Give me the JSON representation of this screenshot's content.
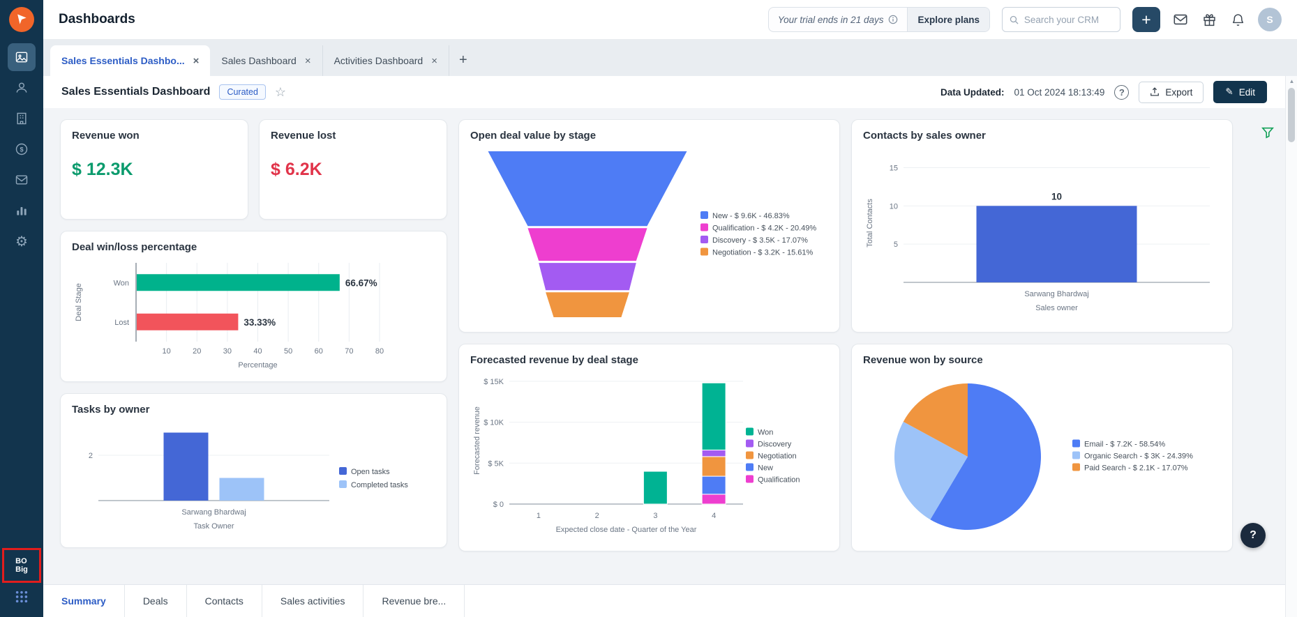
{
  "icons": {
    "close": "×",
    "add_tab": "+",
    "plus": "+",
    "star": "☆",
    "help": "?",
    "edit_pencil": "✎",
    "gear": "⚙",
    "scroll_up": "▲"
  },
  "header": {
    "title": "Dashboards",
    "trial_text": "Your trial ends in 21 days",
    "explore_plans_label": "Explore plans",
    "search_placeholder": "Search your CRM",
    "avatar_initial": "S"
  },
  "dashboard_tabs": [
    {
      "label": "Sales Essentials Dashbo...",
      "active": true
    },
    {
      "label": "Sales Dashboard",
      "active": false
    },
    {
      "label": "Activities Dashboard",
      "active": false
    }
  ],
  "toolbar": {
    "title": "Sales Essentials Dashboard",
    "badge_label": "Curated",
    "data_updated_label": "Data Updated:",
    "data_updated_value": "01 Oct 2024 18:13:49",
    "export_label": "Export",
    "edit_label": "Edit"
  },
  "sidebar": {
    "badge_line1": "BO",
    "badge_line2": "Big"
  },
  "kpi_cards": {
    "revenue_won": {
      "title": "Revenue won",
      "value": "$ 12.3K",
      "color": "#0b9b6d"
    },
    "revenue_lost": {
      "title": "Revenue lost",
      "value": "$ 6.2K",
      "color": "#e1344a"
    }
  },
  "bottom_tabs": [
    {
      "label": "Summary",
      "active": true
    },
    {
      "label": "Deals",
      "active": false
    },
    {
      "label": "Contacts",
      "active": false
    },
    {
      "label": "Sales activities",
      "active": false
    },
    {
      "label": "Revenue bre...",
      "active": false
    }
  ],
  "chart_data": [
    {
      "id": "deal_win_loss",
      "type": "bar",
      "orientation": "horizontal",
      "title": "Deal win/loss percentage",
      "categories": [
        "Won",
        "Lost"
      ],
      "values": [
        66.67,
        33.33
      ],
      "value_labels": [
        "66.67%",
        "33.33%"
      ],
      "colors": [
        "#00b28c",
        "#f2545b"
      ],
      "xlabel": "Percentage",
      "ylabel": "Deal Stage",
      "xticks": [
        10,
        20,
        30,
        40,
        50,
        60,
        70,
        80
      ],
      "xlim": [
        0,
        80
      ],
      "grid": true
    },
    {
      "id": "open_deal_funnel",
      "type": "funnel",
      "title": "Open deal value by stage",
      "legend_position": "right",
      "stages": [
        {
          "name": "New",
          "value": "$ 9.6K",
          "pct": "46.83%",
          "pct_num": 46.83,
          "color": "#4e7cf5"
        },
        {
          "name": "Qualification",
          "value": "$ 4.2K",
          "pct": "20.49%",
          "pct_num": 20.49,
          "color": "#ee3ecf"
        },
        {
          "name": "Discovery",
          "value": "$ 3.5K",
          "pct": "17.07%",
          "pct_num": 17.07,
          "color": "#a35bf2"
        },
        {
          "name": "Negotiation",
          "value": "$ 3.2K",
          "pct": "15.61%",
          "pct_num": 15.61,
          "color": "#f0953f"
        }
      ]
    },
    {
      "id": "contacts_by_owner",
      "type": "bar",
      "title": "Contacts by sales owner",
      "categories": [
        "Sarwang Bhardwaj"
      ],
      "series": [
        {
          "name": "Total Contacts",
          "values": [
            10
          ],
          "color": "#4467d6"
        }
      ],
      "ylabel": "Total Contacts",
      "xlabel": "Sales owner",
      "yticks": [
        5,
        10,
        15
      ],
      "ylim": [
        0,
        15.5
      ],
      "show_values": true,
      "grid": true
    },
    {
      "id": "tasks_by_owner",
      "type": "bar",
      "title": "Tasks by owner",
      "categories": [
        "Sarwang Bhardwaj"
      ],
      "series": [
        {
          "name": "Open tasks",
          "values": [
            3
          ],
          "color": "#4467d6"
        },
        {
          "name": "Completed tasks",
          "values": [
            1
          ],
          "color": "#9dc3f8"
        }
      ],
      "xlabel": "Task Owner",
      "yticks": [
        2
      ],
      "ylim": [
        0,
        3.2
      ],
      "legend_position": "right",
      "grid": true
    },
    {
      "id": "forecasted_revenue",
      "type": "stacked-bar",
      "title": "Forecasted revenue by deal stage",
      "categories": [
        "1",
        "2",
        "3",
        "4"
      ],
      "series": [
        {
          "name": "Won",
          "values": [
            0,
            0,
            4,
            8.2
          ],
          "color": "#00b393"
        },
        {
          "name": "Discovery",
          "values": [
            0,
            0,
            0,
            0.8
          ],
          "color": "#a35bf2"
        },
        {
          "name": "Negotiation",
          "values": [
            0,
            0,
            0,
            2.4
          ],
          "color": "#f0953f"
        },
        {
          "name": "New",
          "values": [
            0,
            0,
            0,
            2.2
          ],
          "color": "#4e7cf5"
        },
        {
          "name": "Qualification",
          "values": [
            0,
            0,
            0,
            1.2
          ],
          "color": "#ee3ecf"
        }
      ],
      "stack_order": [
        "Qualification",
        "New",
        "Negotiation",
        "Discovery",
        "Won"
      ],
      "xlabel": "Expected close date - Quarter of the Year",
      "ylabel": "Forecasted revenue",
      "yticks": [
        {
          "v": 0,
          "label": "$ 0"
        },
        {
          "v": 5,
          "label": "$ 5K"
        },
        {
          "v": 10,
          "label": "$ 10K"
        },
        {
          "v": 15,
          "label": "$ 15K"
        }
      ],
      "ylim": [
        0,
        15.5
      ],
      "unit": "K",
      "legend_position": "right",
      "grid": true
    },
    {
      "id": "revenue_by_source",
      "type": "pie",
      "title": "Revenue won by source",
      "legend_position": "right",
      "slices": [
        {
          "name": "Email",
          "value": "$ 7.2K",
          "pct": "58.54%",
          "pct_num": 58.54,
          "color": "#4e7cf5"
        },
        {
          "name": "Organic Search",
          "value": "$ 3K",
          "pct": "24.39%",
          "pct_num": 24.39,
          "color": "#9dc3f8"
        },
        {
          "name": "Paid Search",
          "value": "$ 2.1K",
          "pct": "17.07%",
          "pct_num": 17.07,
          "color": "#f0953f"
        }
      ]
    }
  ]
}
